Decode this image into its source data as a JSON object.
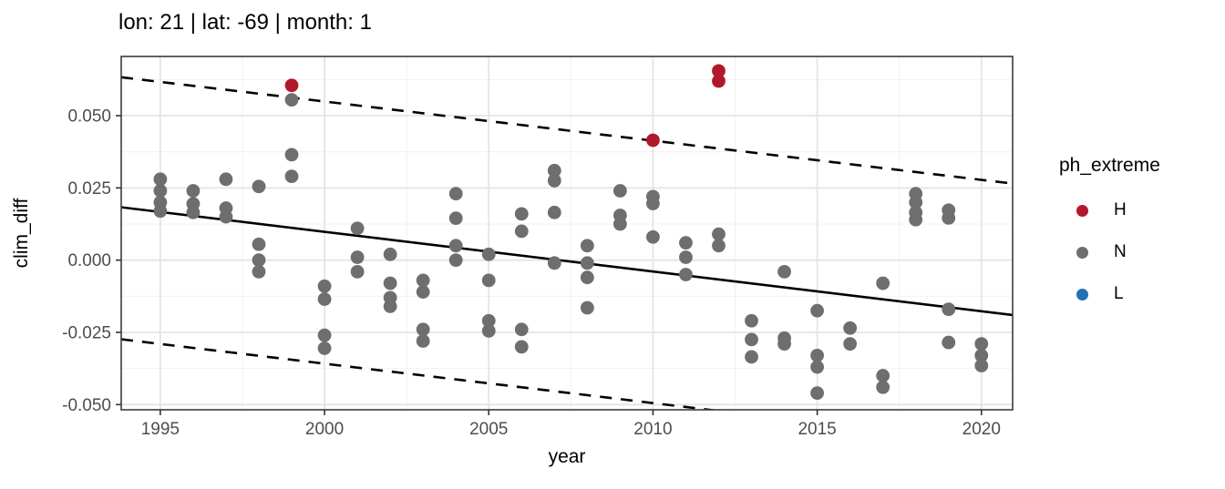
{
  "chart_data": {
    "type": "scatter",
    "title": "lon: 21 | lat: -69 | month: 1",
    "xlabel": "year",
    "ylabel": "clim_diff",
    "xlim": [
      1993.81,
      2020.95
    ],
    "ylim": [
      -0.0518,
      0.0705
    ],
    "grid": "major+minor",
    "x_ticks": {
      "values": [
        1995,
        2000,
        2005,
        2010,
        2015,
        2020
      ],
      "labels": [
        "1995",
        "2000",
        "2005",
        "2010",
        "2015",
        "2020"
      ]
    },
    "x_minor": [
      1997.5,
      2002.5,
      2007.5,
      2012.5,
      2017.5
    ],
    "y_ticks": {
      "values": [
        0.05,
        0.025,
        0.0,
        -0.025,
        -0.05
      ],
      "labels": [
        "0.050",
        "0.025",
        "0.000",
        "-0.025",
        "-0.050"
      ]
    },
    "y_minor": [
      0.0625,
      0.0375,
      0.0125,
      -0.0125,
      -0.0375
    ],
    "series": [
      {
        "name": "N",
        "color": "#6e6e6e",
        "points": [
          [
            1995,
            0.028
          ],
          [
            1995,
            0.024
          ],
          [
            1995,
            0.02
          ],
          [
            1995,
            0.017
          ],
          [
            1996,
            0.024
          ],
          [
            1996,
            0.0195
          ],
          [
            1996,
            0.0165
          ],
          [
            1997,
            0.028
          ],
          [
            1997,
            0.018
          ],
          [
            1997,
            0.015
          ],
          [
            1998,
            0.0255
          ],
          [
            1998,
            0.0055
          ],
          [
            1998,
            0.0
          ],
          [
            1998,
            -0.004
          ],
          [
            1999,
            0.0555
          ],
          [
            1999,
            0.0365
          ],
          [
            1999,
            0.029
          ],
          [
            2000,
            -0.009
          ],
          [
            2000,
            -0.0135
          ],
          [
            2000,
            -0.026
          ],
          [
            2000,
            -0.0305
          ],
          [
            2001,
            0.011
          ],
          [
            2001,
            0.001
          ],
          [
            2001,
            -0.004
          ],
          [
            2002,
            0.002
          ],
          [
            2002,
            -0.008
          ],
          [
            2002,
            -0.013
          ],
          [
            2002,
            -0.016
          ],
          [
            2003,
            -0.007
          ],
          [
            2003,
            -0.011
          ],
          [
            2003,
            -0.024
          ],
          [
            2003,
            -0.028
          ],
          [
            2004,
            0.023
          ],
          [
            2004,
            0.0145
          ],
          [
            2004,
            0.005
          ],
          [
            2004,
            0.0
          ],
          [
            2005,
            0.002
          ],
          [
            2005,
            -0.007
          ],
          [
            2005,
            -0.021
          ],
          [
            2005,
            -0.0245
          ],
          [
            2006,
            0.016
          ],
          [
            2006,
            0.01
          ],
          [
            2006,
            -0.024
          ],
          [
            2006,
            -0.03
          ],
          [
            2007,
            0.031
          ],
          [
            2007,
            0.0275
          ],
          [
            2007,
            0.0165
          ],
          [
            2007,
            -0.001
          ],
          [
            2008,
            0.005
          ],
          [
            2008,
            -0.001
          ],
          [
            2008,
            -0.006
          ],
          [
            2008,
            -0.0165
          ],
          [
            2009,
            0.024
          ],
          [
            2009,
            0.0155
          ],
          [
            2009,
            0.0125
          ],
          [
            2010,
            0.022
          ],
          [
            2010,
            0.0196
          ],
          [
            2010,
            0.008
          ],
          [
            2011,
            0.006
          ],
          [
            2011,
            0.001
          ],
          [
            2011,
            -0.005
          ],
          [
            2012,
            0.009
          ],
          [
            2012,
            0.005
          ],
          [
            2013,
            -0.021
          ],
          [
            2013,
            -0.0275
          ],
          [
            2013,
            -0.0335
          ],
          [
            2014,
            -0.004
          ],
          [
            2014,
            -0.027
          ],
          [
            2014,
            -0.029
          ],
          [
            2015,
            -0.0175
          ],
          [
            2015,
            -0.033
          ],
          [
            2015,
            -0.037
          ],
          [
            2015,
            -0.046
          ],
          [
            2016,
            -0.0235
          ],
          [
            2016,
            -0.029
          ],
          [
            2017,
            -0.008
          ],
          [
            2017,
            -0.04
          ],
          [
            2017,
            -0.044
          ],
          [
            2018,
            0.023
          ],
          [
            2018,
            0.02
          ],
          [
            2018,
            0.0165
          ],
          [
            2018,
            0.014
          ],
          [
            2019,
            0.0173
          ],
          [
            2019,
            0.0146
          ],
          [
            2019,
            -0.017
          ],
          [
            2019,
            -0.0285
          ],
          [
            2020,
            -0.029
          ],
          [
            2020,
            -0.033
          ],
          [
            2020,
            -0.0365
          ]
        ]
      },
      {
        "name": "H",
        "color": "#b2182b",
        "points": [
          [
            1999,
            0.0605
          ],
          [
            2010,
            0.0415
          ],
          [
            2012,
            0.0655
          ],
          [
            2012,
            0.062
          ]
        ]
      },
      {
        "name": "L",
        "color": "#2570b4",
        "points": []
      }
    ],
    "lines": [
      {
        "name": "fit",
        "style": "solid",
        "x1": 1993.81,
        "y1": 0.0183,
        "x2": 2020.95,
        "y2": -0.019
      },
      {
        "name": "upper-band",
        "style": "dashed",
        "x1": 1993.81,
        "y1": 0.0633,
        "x2": 2020.95,
        "y2": 0.0265
      },
      {
        "name": "lower-band",
        "style": "dashed",
        "x1": 1993.81,
        "y1": -0.0274,
        "x2": 2020.95,
        "y2": -0.0644
      }
    ],
    "legend": {
      "title": "ph_extreme",
      "position": "right",
      "entries": [
        {
          "label": "H",
          "color": "#b2182b"
        },
        {
          "label": "N",
          "color": "#6e6e6e"
        },
        {
          "label": "L",
          "color": "#2570b4"
        }
      ]
    },
    "theme": {
      "panel_bg": "#ffffff",
      "grid_major": "#e4e4e4",
      "grid_minor": "#f2f2f2",
      "panel_border": "#3c3c3c",
      "tick_color": "#333333",
      "tick_label_color": "#4d4d4d",
      "line_color": "#000000"
    }
  }
}
